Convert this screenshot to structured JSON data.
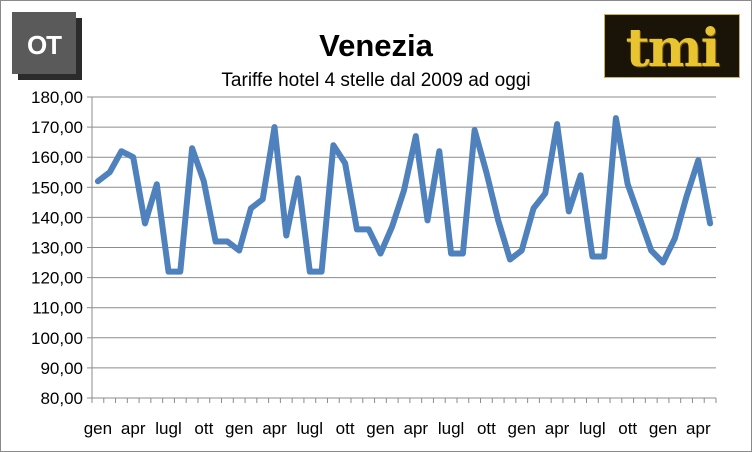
{
  "header": {
    "left_logo_text": "OT",
    "right_logo_text": "tmi"
  },
  "chart_data": {
    "type": "line",
    "title": "Venezia",
    "subtitle": "Tariffe hotel 4 stelle dal 2009 ad oggi",
    "xlabel": "",
    "ylabel": "",
    "ylim": [
      80,
      180
    ],
    "y_ticks": [
      "80,00",
      "90,00",
      "100,00",
      "110,00",
      "120,00",
      "130,00",
      "140,00",
      "150,00",
      "160,00",
      "170,00",
      "180,00"
    ],
    "grid": true,
    "legend": "none",
    "x_tick_labels": [
      "gen",
      "apr",
      "lugl",
      "ott",
      "gen",
      "apr",
      "lugl",
      "ott",
      "gen",
      "apr",
      "lugl",
      "ott",
      "gen",
      "apr",
      "lugl",
      "ott",
      "gen",
      "apr"
    ],
    "line_color": "#4f81bd",
    "series": [
      {
        "values": [
          152,
          155,
          162,
          160,
          138,
          151,
          122,
          122,
          163,
          152,
          132,
          132,
          129,
          143,
          146,
          170,
          134,
          153,
          122,
          122,
          164,
          158,
          136,
          136,
          128,
          137,
          149,
          167,
          139,
          162,
          128,
          128,
          169,
          155,
          139,
          126,
          129,
          143,
          148,
          171,
          142,
          154,
          127,
          127,
          173,
          151,
          140,
          129,
          125,
          133,
          147,
          159,
          138
        ]
      }
    ]
  }
}
